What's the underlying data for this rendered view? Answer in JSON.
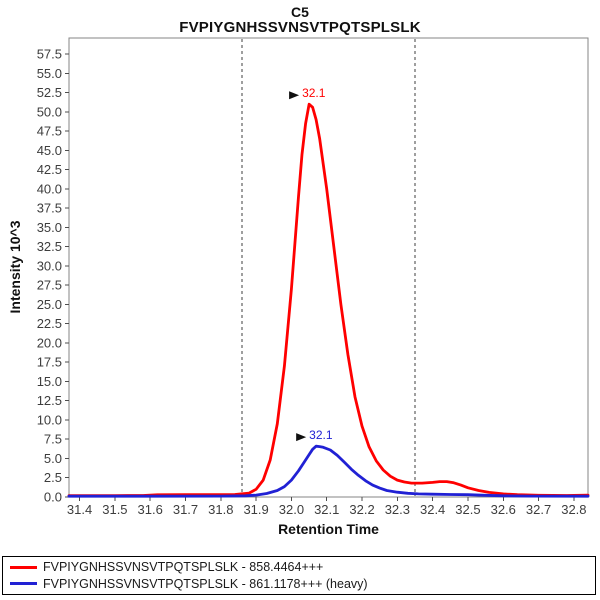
{
  "chart": {
    "title": "C5",
    "subtitle": "FVPIYGNHSSVNSVTPQTSPLSLK",
    "xlabel": "Retention Time",
    "ylabel": "Intensity 10^3"
  },
  "legend": {
    "items": [
      {
        "label": "FVPIYGNHSSVNSVTPQTSPLSLK - 858.4464+++",
        "color": "#ff0000"
      },
      {
        "label": "FVPIYGNHSSVNSVTPQTSPLSLK - 861.1178+++ (heavy)",
        "color": "#2121d4"
      }
    ]
  },
  "chart_data": {
    "type": "line",
    "title": "C5",
    "subtitle": "FVPIYGNHSSVNSVTPQTSPLSLK",
    "xlabel": "Retention Time",
    "ylabel": "Intensity 10^3",
    "xlim": [
      31.37,
      32.84
    ],
    "ylim": [
      0,
      59.6
    ],
    "x_ticks": [
      31.4,
      31.5,
      31.6,
      31.7,
      31.8,
      31.9,
      32.0,
      32.1,
      32.2,
      32.3,
      32.4,
      32.5,
      32.6,
      32.7,
      32.8
    ],
    "y_ticks": [
      0.0,
      2.5,
      5.0,
      7.5,
      10.0,
      12.5,
      15.0,
      17.5,
      20.0,
      22.5,
      25.0,
      27.5,
      30.0,
      32.5,
      35.0,
      37.5,
      40.0,
      42.5,
      45.0,
      47.5,
      50.0,
      52.5,
      55.0,
      57.5
    ],
    "grid": false,
    "legend_position": "bottom",
    "peak_boundaries": [
      31.86,
      32.35
    ],
    "boundary_color": "#3f3f3f",
    "frame_color": "#858585",
    "tick_color": "#4d4d4d",
    "tick_text_color": "#3d3d3d",
    "series": [
      {
        "name": "FVPIYGNHSSVNSVTPQTSPLSLK - 858.4464+++",
        "color": "#ff0000",
        "peak_rt": 32.1,
        "peak_height_10e3": 51.0,
        "points": [
          [
            31.37,
            0.18
          ],
          [
            31.5,
            0.18
          ],
          [
            31.58,
            0.2
          ],
          [
            31.62,
            0.28
          ],
          [
            31.7,
            0.3
          ],
          [
            31.78,
            0.3
          ],
          [
            31.84,
            0.33
          ],
          [
            31.88,
            0.5
          ],
          [
            31.9,
            1.0
          ],
          [
            31.92,
            2.2
          ],
          [
            31.94,
            4.8
          ],
          [
            31.96,
            9.5
          ],
          [
            31.98,
            17.0
          ],
          [
            32.0,
            27.0
          ],
          [
            32.02,
            39.0
          ],
          [
            32.03,
            44.5
          ],
          [
            32.04,
            48.5
          ],
          [
            32.05,
            51.0
          ],
          [
            32.06,
            50.6
          ],
          [
            32.07,
            49.0
          ],
          [
            32.08,
            46.5
          ],
          [
            32.1,
            40.0
          ],
          [
            32.12,
            32.5
          ],
          [
            32.14,
            25.0
          ],
          [
            32.16,
            18.5
          ],
          [
            32.18,
            13.0
          ],
          [
            32.2,
            9.2
          ],
          [
            32.22,
            6.5
          ],
          [
            32.24,
            4.7
          ],
          [
            32.26,
            3.5
          ],
          [
            32.28,
            2.7
          ],
          [
            32.3,
            2.2
          ],
          [
            32.32,
            1.95
          ],
          [
            32.34,
            1.8
          ],
          [
            32.37,
            1.8
          ],
          [
            32.4,
            1.9
          ],
          [
            32.42,
            2.0
          ],
          [
            32.44,
            2.0
          ],
          [
            32.46,
            1.85
          ],
          [
            32.48,
            1.55
          ],
          [
            32.5,
            1.2
          ],
          [
            32.53,
            0.85
          ],
          [
            32.56,
            0.6
          ],
          [
            32.6,
            0.4
          ],
          [
            32.64,
            0.3
          ],
          [
            32.7,
            0.22
          ],
          [
            32.78,
            0.2
          ],
          [
            32.84,
            0.25
          ]
        ]
      },
      {
        "name": "FVPIYGNHSSVNSVTPQTSPLSLK - 861.1178+++ (heavy)",
        "color": "#2121d4",
        "peak_rt": 32.1,
        "peak_height_10e3": 6.6,
        "points": [
          [
            31.37,
            0.1
          ],
          [
            31.6,
            0.1
          ],
          [
            31.8,
            0.12
          ],
          [
            31.87,
            0.16
          ],
          [
            31.9,
            0.25
          ],
          [
            31.93,
            0.45
          ],
          [
            31.96,
            0.85
          ],
          [
            31.98,
            1.35
          ],
          [
            32.0,
            2.2
          ],
          [
            32.02,
            3.4
          ],
          [
            32.04,
            4.8
          ],
          [
            32.05,
            5.5
          ],
          [
            32.06,
            6.2
          ],
          [
            32.07,
            6.6
          ],
          [
            32.08,
            6.55
          ],
          [
            32.09,
            6.45
          ],
          [
            32.11,
            6.1
          ],
          [
            32.13,
            5.4
          ],
          [
            32.15,
            4.5
          ],
          [
            32.17,
            3.6
          ],
          [
            32.19,
            2.8
          ],
          [
            32.21,
            2.1
          ],
          [
            32.23,
            1.55
          ],
          [
            32.25,
            1.15
          ],
          [
            32.27,
            0.85
          ],
          [
            32.3,
            0.62
          ],
          [
            32.33,
            0.48
          ],
          [
            32.36,
            0.4
          ],
          [
            32.4,
            0.36
          ],
          [
            32.45,
            0.32
          ],
          [
            32.5,
            0.3
          ],
          [
            32.55,
            0.22
          ],
          [
            32.6,
            0.16
          ],
          [
            32.68,
            0.12
          ],
          [
            32.84,
            0.1
          ]
        ]
      }
    ],
    "annotations": [
      {
        "label": "32.1",
        "color": "#ff0000",
        "rt": 32.05,
        "intensity": 51.0
      },
      {
        "label": "32.1",
        "color": "#2121d4",
        "rt": 32.07,
        "intensity": 6.6
      }
    ]
  }
}
